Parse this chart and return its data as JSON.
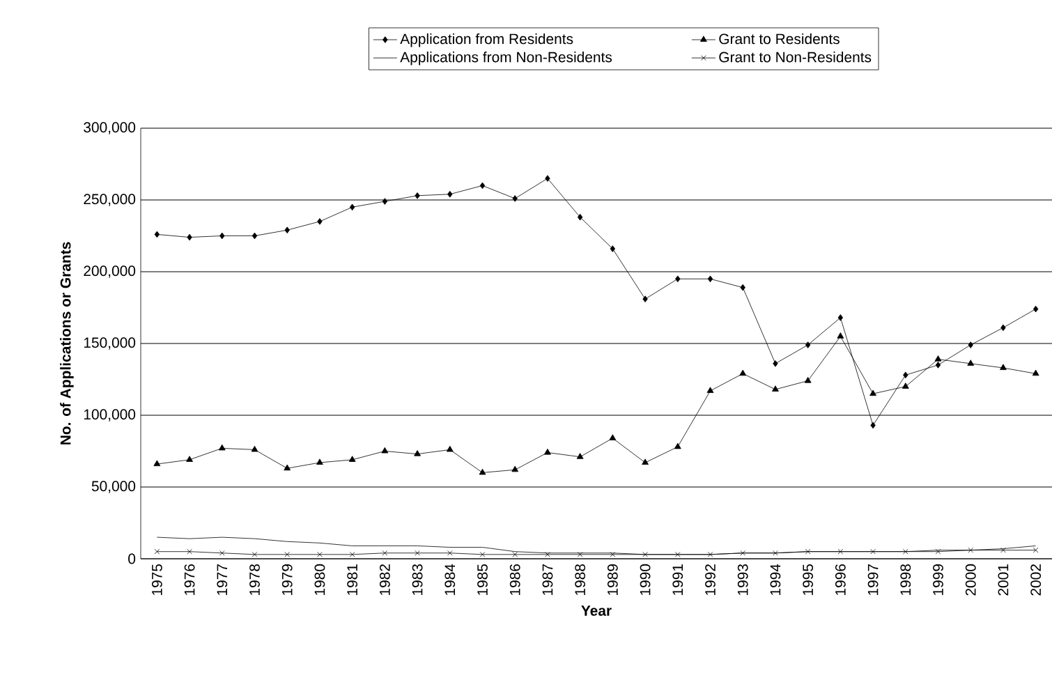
{
  "chart_data": {
    "type": "line",
    "xlabel": "Year",
    "ylabel": "No. of Applications or Grants",
    "categories": [
      "1975",
      "1976",
      "1977",
      "1978",
      "1979",
      "1980",
      "1981",
      "1982",
      "1983",
      "1984",
      "1985",
      "1986",
      "1987",
      "1988",
      "1989",
      "1990",
      "1991",
      "1992",
      "1993",
      "1994",
      "1995",
      "1996",
      "1997",
      "1998",
      "1999",
      "2000",
      "2001",
      "2002"
    ],
    "series": [
      {
        "name": "Application from  Residents",
        "color": "#000000",
        "marker": "diamond",
        "values": [
          226000,
          224000,
          225000,
          225000,
          229000,
          235000,
          245000,
          249000,
          253000,
          254000,
          260000,
          251000,
          265000,
          238000,
          216000,
          181000,
          195000,
          195000,
          189000,
          136000,
          149000,
          168000,
          93000,
          128000,
          135000,
          149000,
          161000,
          174000
        ]
      },
      {
        "name": "Applications from Non-Residents",
        "color": "#000000",
        "marker": "none",
        "values": [
          15000,
          14000,
          15000,
          14000,
          12000,
          11000,
          9000,
          9000,
          9000,
          8000,
          8000,
          5000,
          4000,
          4000,
          4000,
          3000,
          3000,
          3000,
          4000,
          4000,
          5000,
          5000,
          5000,
          5000,
          6000,
          6000,
          7000,
          9000
        ]
      },
      {
        "name": "Grant to Residents",
        "color": "#000000",
        "marker": "triangle",
        "values": [
          66000,
          69000,
          77000,
          76000,
          63000,
          67000,
          69000,
          75000,
          73000,
          76000,
          60000,
          62000,
          74000,
          71000,
          84000,
          67000,
          78000,
          117000,
          129000,
          118000,
          124000,
          155000,
          115000,
          120000,
          139000,
          136000,
          133000,
          129000
        ]
      },
      {
        "name": "Grant to Non-Residents",
        "color": "#000000",
        "marker": "cross",
        "values": [
          5000,
          5000,
          4000,
          3000,
          3000,
          3000,
          3000,
          4000,
          4000,
          4000,
          3000,
          3000,
          3000,
          3000,
          3000,
          3000,
          3000,
          3000,
          4000,
          4000,
          5000,
          5000,
          5000,
          5000,
          5000,
          6000,
          6000,
          6000
        ]
      }
    ],
    "ylim": [
      0,
      300000
    ],
    "yticks": [
      {
        "value": 0,
        "label": "0"
      },
      {
        "value": 50000,
        "label": "50,000"
      },
      {
        "value": 100000,
        "label": "100,000"
      },
      {
        "value": 150000,
        "label": "150,000"
      },
      {
        "value": 200000,
        "label": "200,000"
      },
      {
        "value": 250000,
        "label": "250,000"
      },
      {
        "value": 300000,
        "label": "300,000"
      }
    ],
    "grid": "y",
    "legend": "top",
    "line_style": "solid"
  }
}
